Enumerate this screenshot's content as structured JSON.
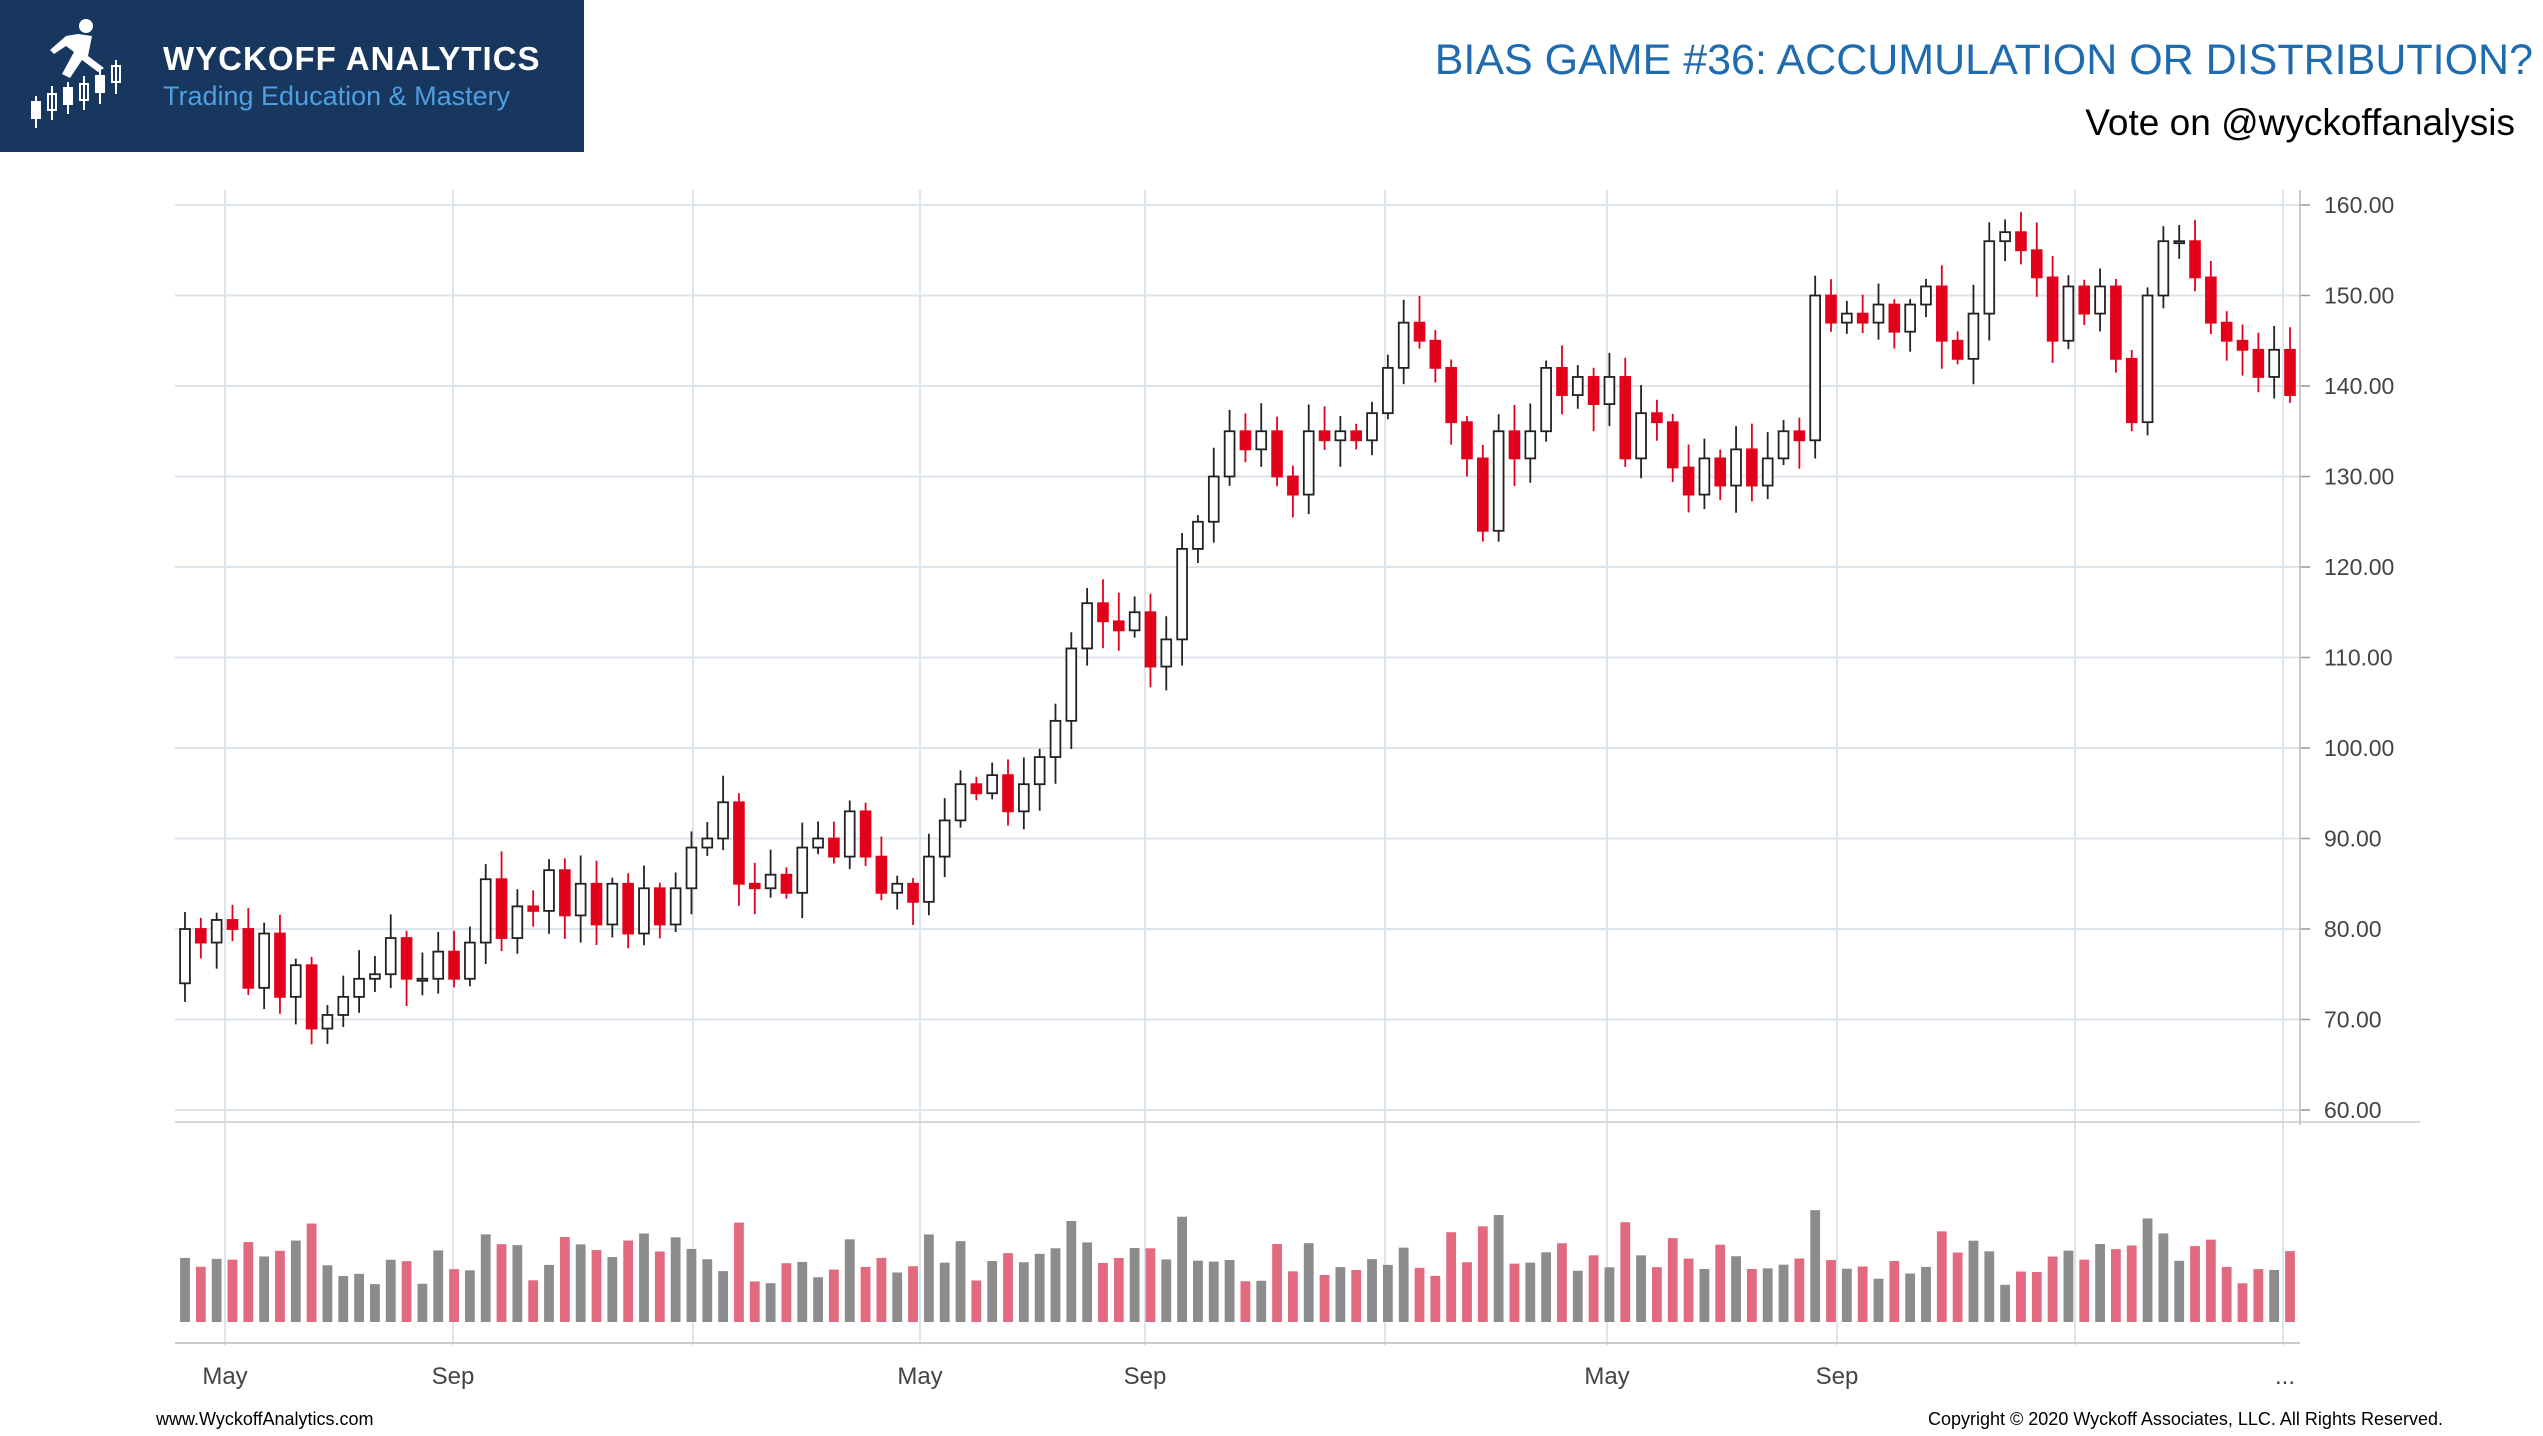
{
  "header": {
    "brand_name": "WYCKOFF ANALYTICS",
    "brand_tagline": "Trading Education & Mastery",
    "title": "BIAS GAME #36: ACCUMULATION OR DISTRIBUTION?",
    "subtitle": "Vote on @wyckoffanalysis"
  },
  "footer": {
    "website": "www.WyckoffAnalytics.com",
    "copyright": "Copyright © 2020 Wyckoff Associates, LLC. All Rights Reserved."
  },
  "colors": {
    "up_candle": "#ffffff",
    "up_outline": "#222222",
    "down_candle": "#e3001b",
    "volume_up": "#8c8c8c",
    "volume_down": "#e26a7f",
    "grid": "#dde5ec",
    "brand_bg": "#17375e",
    "title": "#1f6bb0"
  },
  "chart_data": {
    "type": "candlestick",
    "ylim": [
      60,
      160
    ],
    "y_ticks": [
      "160.00",
      "150.00",
      "140.00",
      "130.00",
      "120.00",
      "110.00",
      "100.00",
      "90.00",
      "80.00",
      "70.00",
      "60.00"
    ],
    "x_tick_labels": [
      "May",
      "Sep",
      "May",
      "Sep",
      "May",
      "Sep",
      "..."
    ],
    "grid": true,
    "closes": [
      80,
      78.5,
      81,
      80,
      73.5,
      79.5,
      72.5,
      76,
      69,
      70.5,
      72.5,
      74.5,
      75,
      79,
      74.5,
      74.5,
      77.5,
      74.5,
      78.5,
      85.5,
      79,
      82.5,
      82,
      86.5,
      81.5,
      85,
      80.5,
      85,
      79.5,
      84.5,
      80.5,
      84.5,
      89,
      90,
      94,
      85,
      84.5,
      86,
      84,
      89,
      90,
      88,
      93,
      88,
      84,
      85,
      83,
      88,
      92,
      96,
      95,
      97,
      93,
      96,
      99,
      103,
      111,
      116,
      114,
      113,
      115,
      109,
      112,
      122,
      125,
      130,
      135,
      133,
      135,
      130,
      128,
      135,
      134,
      135,
      134,
      137,
      142,
      147,
      145,
      142,
      136,
      132,
      124,
      135,
      132,
      135,
      142,
      139,
      141,
      138,
      141,
      132,
      137,
      136,
      131,
      128,
      132,
      129,
      133,
      129,
      132,
      135,
      134,
      150,
      147,
      148,
      147,
      149,
      146,
      149,
      151,
      145,
      143,
      148,
      156,
      157,
      155,
      152,
      145,
      151,
      148,
      151,
      143,
      136,
      150,
      156,
      156,
      152,
      147,
      145,
      144,
      141,
      144,
      139
    ]
  }
}
